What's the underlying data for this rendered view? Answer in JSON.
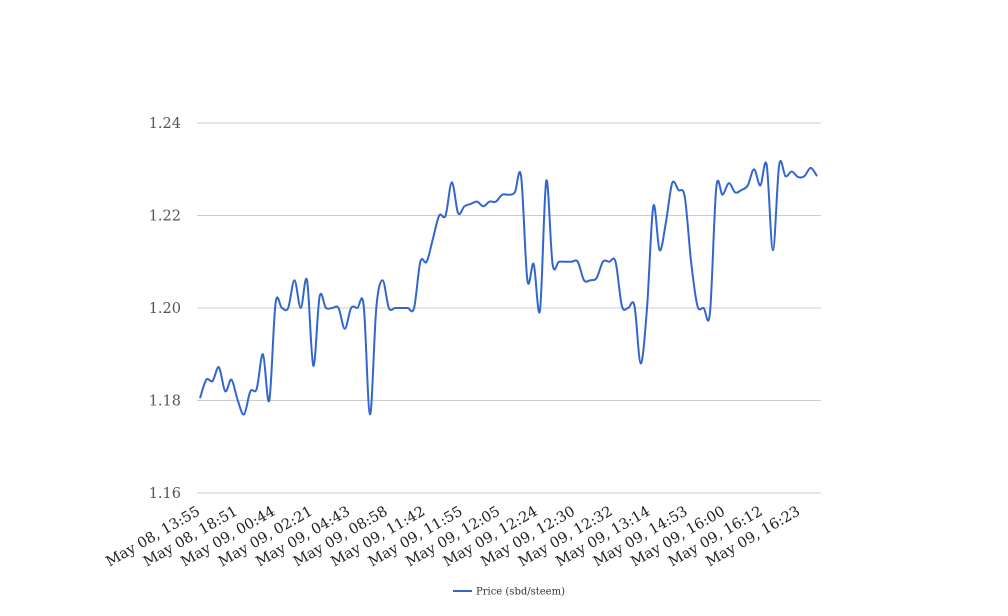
{
  "chart_data": {
    "type": "line",
    "title": "",
    "xlabel": "",
    "ylabel": "",
    "ylim": [
      1.16,
      1.24
    ],
    "y_ticks": [
      1.16,
      1.18,
      1.2,
      1.22,
      1.24
    ],
    "y_tick_labels": [
      "1.16",
      "1.18",
      "1.20",
      "1.22",
      "1.24"
    ],
    "x_tick_labels": [
      "May 08, 13:55",
      "May 08, 18:51",
      "May 09, 00:44",
      "May 09, 02:21",
      "May 09, 04:43",
      "May 09, 08:58",
      "May 09, 11:42",
      "May 09, 11:55",
      "May 09, 12:05",
      "May 09, 12:24",
      "May 09, 12:30",
      "May 09, 12:32",
      "May 09, 13:14",
      "May 09, 14:53",
      "May 09, 16:00",
      "May 09, 16:12",
      "May 09, 16:23"
    ],
    "grid": true,
    "legend_position": "bottom",
    "colors": {
      "line": "#3366cc",
      "grid": "#cccccc"
    },
    "series": [
      {
        "name": "Price (sbd/steem)",
        "values": [
          1.1805,
          1.1845,
          1.1842,
          1.1872,
          1.182,
          1.1845,
          1.18,
          1.177,
          1.182,
          1.1825,
          1.19,
          1.18,
          1.201,
          1.2,
          1.2,
          1.206,
          1.2,
          1.206,
          1.1875,
          1.2025,
          1.2,
          1.2,
          1.2,
          1.1955,
          1.2,
          1.2,
          1.2005,
          1.177,
          1.2,
          1.206,
          1.2,
          1.2,
          1.2,
          1.2,
          1.2,
          1.21,
          1.21,
          1.215,
          1.22,
          1.22,
          1.2272,
          1.2205,
          1.222,
          1.2225,
          1.223,
          1.222,
          1.223,
          1.223,
          1.2245,
          1.2245,
          1.225,
          1.2285,
          1.206,
          1.2095,
          1.1995,
          1.2275,
          1.2095,
          1.21,
          1.21,
          1.21,
          1.21,
          1.206,
          1.206,
          1.2065,
          1.21,
          1.21,
          1.21,
          1.2005,
          1.2,
          1.2005,
          1.188,
          1.2,
          1.222,
          1.2125,
          1.2185,
          1.227,
          1.2255,
          1.224,
          1.21,
          1.2005,
          1.2,
          1.199,
          1.226,
          1.2245,
          1.227,
          1.225,
          1.2255,
          1.2265,
          1.23,
          1.2265,
          1.231,
          1.2125,
          1.231,
          1.2285,
          1.2295,
          1.2283,
          1.2285,
          1.2303,
          1.2285
        ]
      }
    ]
  }
}
